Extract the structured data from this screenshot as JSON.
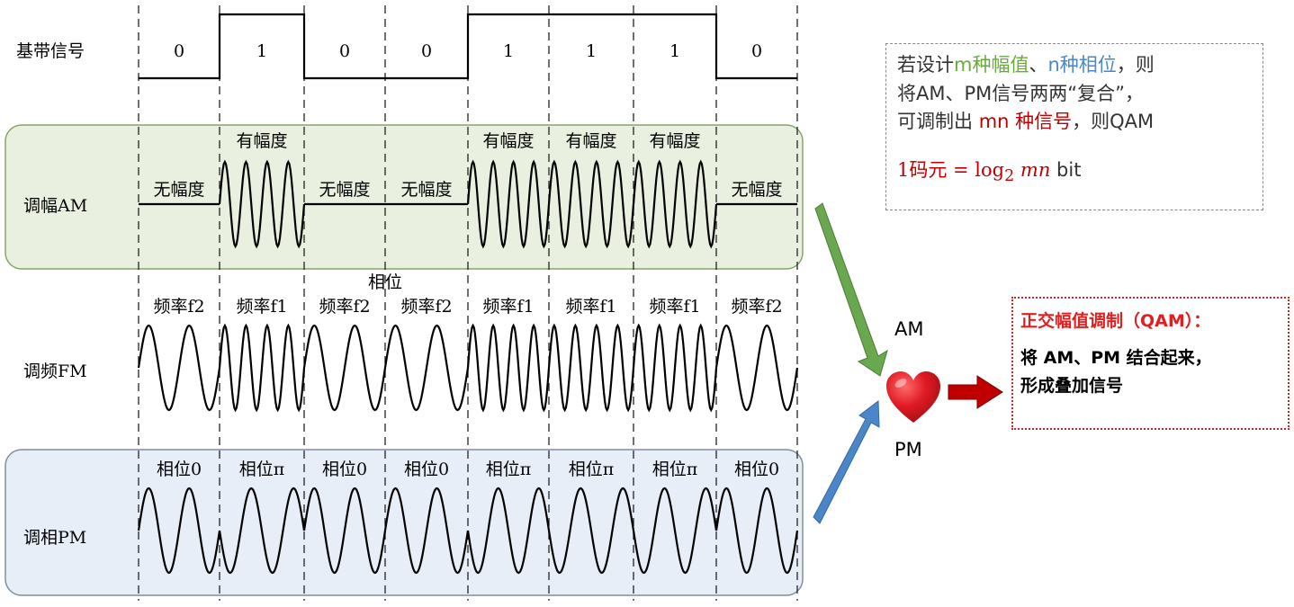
{
  "diagram": {
    "row_labels": {
      "baseband": "基带信号",
      "am": "调幅AM",
      "fm": "调频FM",
      "pm": "调相PM"
    },
    "bits": [
      "0",
      "1",
      "0",
      "0",
      "1",
      "1",
      "1",
      "0"
    ],
    "am_labels": [
      "无幅度",
      "有幅度",
      "无幅度",
      "无幅度",
      "有幅度",
      "有幅度",
      "有幅度",
      "无幅度"
    ],
    "fm_labels": [
      "频率f2",
      "频率f1",
      "频率f2",
      "频率f2",
      "频率f1",
      "频率f1",
      "频率f1",
      "频率f2"
    ],
    "fm_header": "相位",
    "pm_labels": [
      "相位0",
      "相位π",
      "相位0",
      "相位0",
      "相位π",
      "相位π",
      "相位π",
      "相位0"
    ],
    "colors": {
      "am_panel": "#e9f0df",
      "am_panel_border": "#86a66c",
      "pm_panel": "#e8eef8",
      "pm_panel_border": "#7f8f9f"
    }
  },
  "info": {
    "line1": {
      "prefix": "若设计",
      "m_part": "m种幅值",
      "sep": "、",
      "n_part": "n种相位",
      "suffix": "，则"
    },
    "line2": "将AM、PM信号两两“复合”，",
    "line3": {
      "prefix": "可调制出 ",
      "mn_part": "mn 种信号",
      "suffix": "，则QAM"
    },
    "formula": {
      "lhs": "1码元 = log",
      "sub": "2",
      "var": " mn",
      "unit": " bit"
    }
  },
  "arrows": {
    "am_label": "AM",
    "pm_label": "PM",
    "colors": {
      "am": "#6aa84f",
      "pm": "#4a86c8",
      "result": "#c00000"
    },
    "heart_icon": "heart-emoji"
  },
  "qam": {
    "title": "正交幅值调制（QAM）：",
    "line1": "将 AM、PM 结合起来，",
    "line2": "形成叠加信号"
  }
}
